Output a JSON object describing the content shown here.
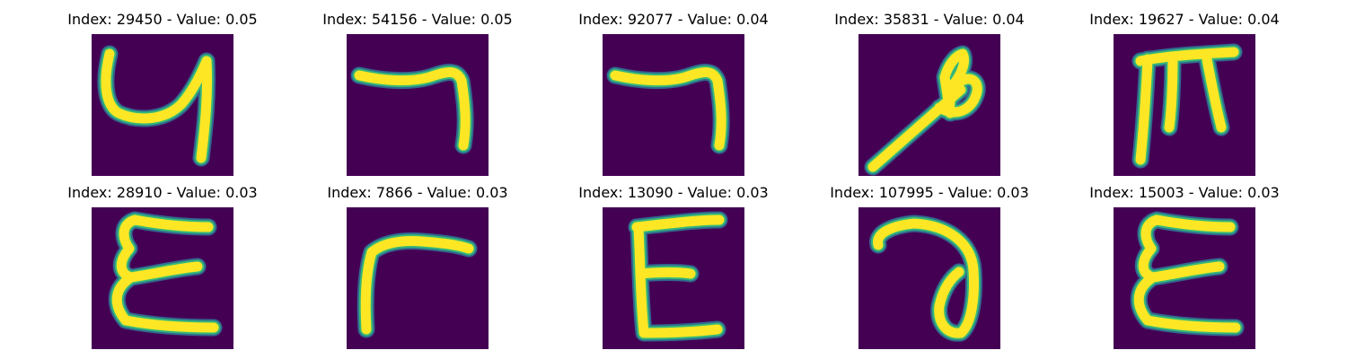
{
  "figure": {
    "background": "#ffffff",
    "panel_background": "#440154",
    "stroke_colors": [
      "#31688e",
      "#35b779",
      "#fde725"
    ]
  },
  "chart_data": [
    {
      "type": "image",
      "title": "Index: 29450 - Value: 0.05",
      "index": 29450,
      "value": 0.05,
      "glyph": "handwritten-4-like"
    },
    {
      "type": "image",
      "title": "Index: 54156 - Value: 0.05",
      "index": 54156,
      "value": 0.05,
      "glyph": "handwritten-7-like"
    },
    {
      "type": "image",
      "title": "Index: 92077 - Value: 0.04",
      "index": 92077,
      "value": 0.04,
      "glyph": "handwritten-7-like"
    },
    {
      "type": "image",
      "title": "Index: 35831 - Value: 0.04",
      "index": 35831,
      "value": 0.04,
      "glyph": "handwritten-loop-stroke"
    },
    {
      "type": "image",
      "title": "Index: 19627 - Value: 0.04",
      "index": 19627,
      "value": 0.04,
      "glyph": "handwritten-m"
    },
    {
      "type": "image",
      "title": "Index: 28910 - Value: 0.03",
      "index": 28910,
      "value": 0.03,
      "glyph": "handwritten-epsilon"
    },
    {
      "type": "image",
      "title": "Index: 7866 - Value: 0.03",
      "index": 7866,
      "value": 0.03,
      "glyph": "handwritten-r-like"
    },
    {
      "type": "image",
      "title": "Index: 13090 - Value: 0.03",
      "index": 13090,
      "value": 0.03,
      "glyph": "handwritten-E"
    },
    {
      "type": "image",
      "title": "Index: 107995 - Value: 0.03",
      "index": 107995,
      "value": 0.03,
      "glyph": "handwritten-a-like"
    },
    {
      "type": "image",
      "title": "Index: 15003 - Value: 0.03",
      "index": 15003,
      "value": 0.03,
      "glyph": "handwritten-epsilon"
    }
  ]
}
